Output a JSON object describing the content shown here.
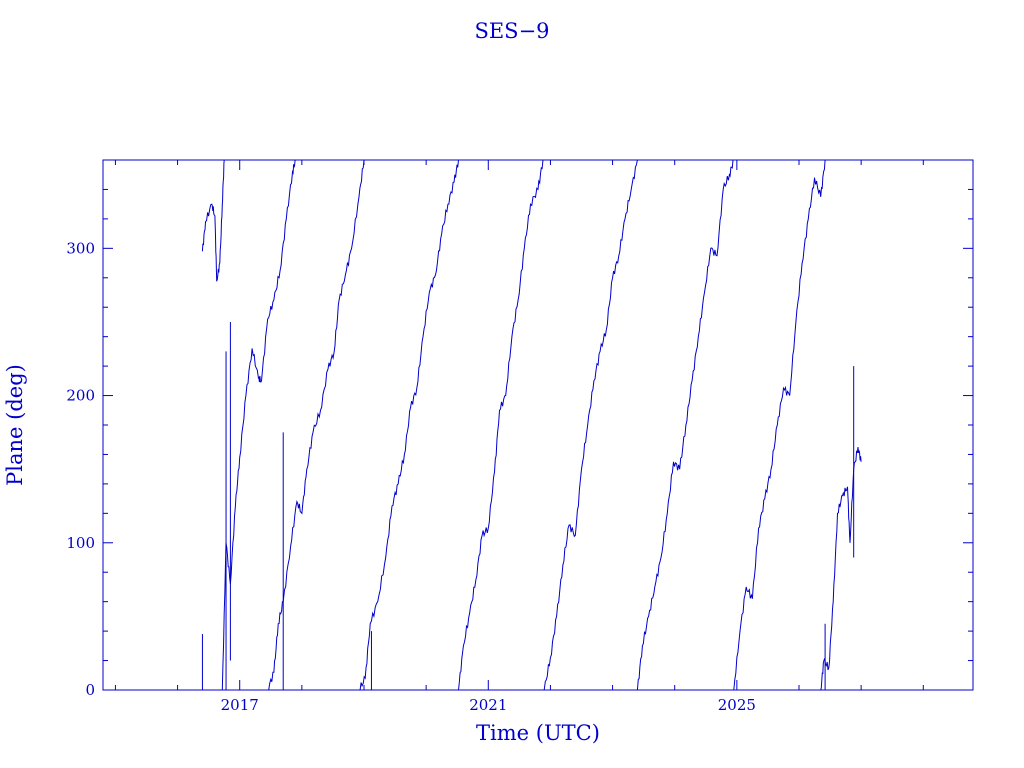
{
  "chart_data": {
    "type": "line",
    "title": "SES−9",
    "xlabel": "Time (UTC)",
    "ylabel": "Plane (deg)",
    "xlim": [
      2014.8,
      2028.8
    ],
    "ylim": [
      0,
      360
    ],
    "x_tick_labels": [
      {
        "value": 2017,
        "label": "2017"
      },
      {
        "value": 2021,
        "label": "2021"
      },
      {
        "value": 2025,
        "label": "2025"
      }
    ],
    "y_tick_labels": [
      {
        "value": 0,
        "label": "0"
      },
      {
        "value": 100,
        "label": "100"
      },
      {
        "value": 200,
        "label": "200"
      },
      {
        "value": 300,
        "label": "300"
      }
    ],
    "grid": false,
    "line_color": "#0000cc",
    "series": [
      {
        "values": [
          [
            2016.4,
            298
          ],
          [
            2016.45,
            318
          ],
          [
            2016.55,
            330
          ],
          [
            2016.6,
            322
          ],
          [
            2016.63,
            278
          ],
          [
            2016.68,
            290
          ],
          [
            2016.72,
            330
          ],
          [
            2016.75,
            360
          ]
        ]
      },
      {
        "values": [
          [
            2016.72,
            0
          ],
          [
            2016.78,
            100
          ],
          [
            2016.85,
            72
          ],
          [
            2016.93,
            125
          ],
          [
            2017.0,
            158
          ],
          [
            2017.1,
            200
          ],
          [
            2017.2,
            232
          ],
          [
            2017.3,
            212
          ],
          [
            2017.35,
            210
          ],
          [
            2017.45,
            252
          ],
          [
            2017.55,
            265
          ],
          [
            2017.65,
            285
          ],
          [
            2017.75,
            320
          ],
          [
            2017.85,
            352
          ],
          [
            2017.9,
            360
          ]
        ]
      },
      {
        "values": [
          [
            2017.45,
            0
          ],
          [
            2017.55,
            12
          ],
          [
            2017.62,
            45
          ],
          [
            2017.7,
            60
          ],
          [
            2017.82,
            98
          ],
          [
            2017.92,
            128
          ],
          [
            2018.0,
            120
          ],
          [
            2018.08,
            150
          ],
          [
            2018.18,
            175
          ],
          [
            2018.3,
            190
          ],
          [
            2018.42,
            218
          ],
          [
            2018.52,
            230
          ],
          [
            2018.6,
            265
          ],
          [
            2018.7,
            282
          ],
          [
            2018.8,
            300
          ],
          [
            2018.92,
            335
          ],
          [
            2019.0,
            360
          ]
        ]
      },
      {
        "values": [
          [
            2018.92,
            0
          ],
          [
            2019.02,
            8
          ],
          [
            2019.1,
            45
          ],
          [
            2019.22,
            60
          ],
          [
            2019.35,
            90
          ],
          [
            2019.45,
            125
          ],
          [
            2019.55,
            140
          ],
          [
            2019.65,
            160
          ],
          [
            2019.75,
            192
          ],
          [
            2019.85,
            205
          ],
          [
            2019.95,
            240
          ],
          [
            2020.05,
            270
          ],
          [
            2020.15,
            282
          ],
          [
            2020.25,
            310
          ],
          [
            2020.35,
            330
          ],
          [
            2020.45,
            345
          ],
          [
            2020.52,
            360
          ]
        ]
      },
      {
        "values": [
          [
            2020.52,
            0
          ],
          [
            2020.6,
            30
          ],
          [
            2020.7,
            52
          ],
          [
            2020.8,
            75
          ],
          [
            2020.9,
            105
          ],
          [
            2021.0,
            110
          ],
          [
            2021.1,
            148
          ],
          [
            2021.18,
            190
          ],
          [
            2021.28,
            200
          ],
          [
            2021.38,
            240
          ],
          [
            2021.48,
            265
          ],
          [
            2021.58,
            300
          ],
          [
            2021.68,
            330
          ],
          [
            2021.8,
            340
          ],
          [
            2021.88,
            360
          ]
        ]
      },
      {
        "values": [
          [
            2021.9,
            0
          ],
          [
            2022.0,
            22
          ],
          [
            2022.1,
            50
          ],
          [
            2022.2,
            85
          ],
          [
            2022.3,
            112
          ],
          [
            2022.4,
            105
          ],
          [
            2022.5,
            150
          ],
          [
            2022.6,
            180
          ],
          [
            2022.7,
            210
          ],
          [
            2022.8,
            230
          ],
          [
            2022.9,
            245
          ],
          [
            2023.0,
            280
          ],
          [
            2023.1,
            295
          ],
          [
            2023.2,
            320
          ],
          [
            2023.3,
            340
          ],
          [
            2023.4,
            360
          ]
        ]
      },
      {
        "values": [
          [
            2023.4,
            0
          ],
          [
            2023.48,
            30
          ],
          [
            2023.58,
            50
          ],
          [
            2023.68,
            70
          ],
          [
            2023.78,
            90
          ],
          [
            2023.88,
            120
          ],
          [
            2023.98,
            155
          ],
          [
            2024.08,
            150
          ],
          [
            2024.18,
            180
          ],
          [
            2024.28,
            210
          ],
          [
            2024.38,
            240
          ],
          [
            2024.48,
            270
          ],
          [
            2024.58,
            300
          ],
          [
            2024.68,
            295
          ],
          [
            2024.78,
            340
          ],
          [
            2024.88,
            350
          ],
          [
            2024.95,
            360
          ]
        ]
      },
      {
        "values": [
          [
            2024.95,
            0
          ],
          [
            2025.05,
            40
          ],
          [
            2025.15,
            70
          ],
          [
            2025.25,
            62
          ],
          [
            2025.35,
            110
          ],
          [
            2025.45,
            130
          ],
          [
            2025.55,
            150
          ],
          [
            2025.65,
            180
          ],
          [
            2025.75,
            205
          ],
          [
            2025.85,
            200
          ],
          [
            2025.95,
            250
          ],
          [
            2026.05,
            290
          ],
          [
            2026.15,
            320
          ],
          [
            2026.25,
            348
          ],
          [
            2026.35,
            335
          ],
          [
            2026.42,
            360
          ]
        ]
      },
      {
        "values": [
          [
            2026.35,
            0
          ],
          [
            2026.4,
            20
          ],
          [
            2026.48,
            15
          ],
          [
            2026.55,
            60
          ],
          [
            2026.62,
            120
          ],
          [
            2026.7,
            132
          ],
          [
            2026.78,
            138
          ],
          [
            2026.82,
            100
          ],
          [
            2026.88,
            150
          ],
          [
            2026.95,
            165
          ],
          [
            2027.0,
            155
          ]
        ]
      }
    ],
    "spikes": [
      [
        2016.4,
        0,
        38
      ],
      [
        2016.78,
        0,
        230
      ],
      [
        2016.85,
        20,
        250
      ],
      [
        2017.7,
        0,
        175
      ],
      [
        2019.12,
        0,
        40
      ],
      [
        2026.42,
        0,
        45
      ],
      [
        2026.88,
        90,
        220
      ]
    ]
  }
}
